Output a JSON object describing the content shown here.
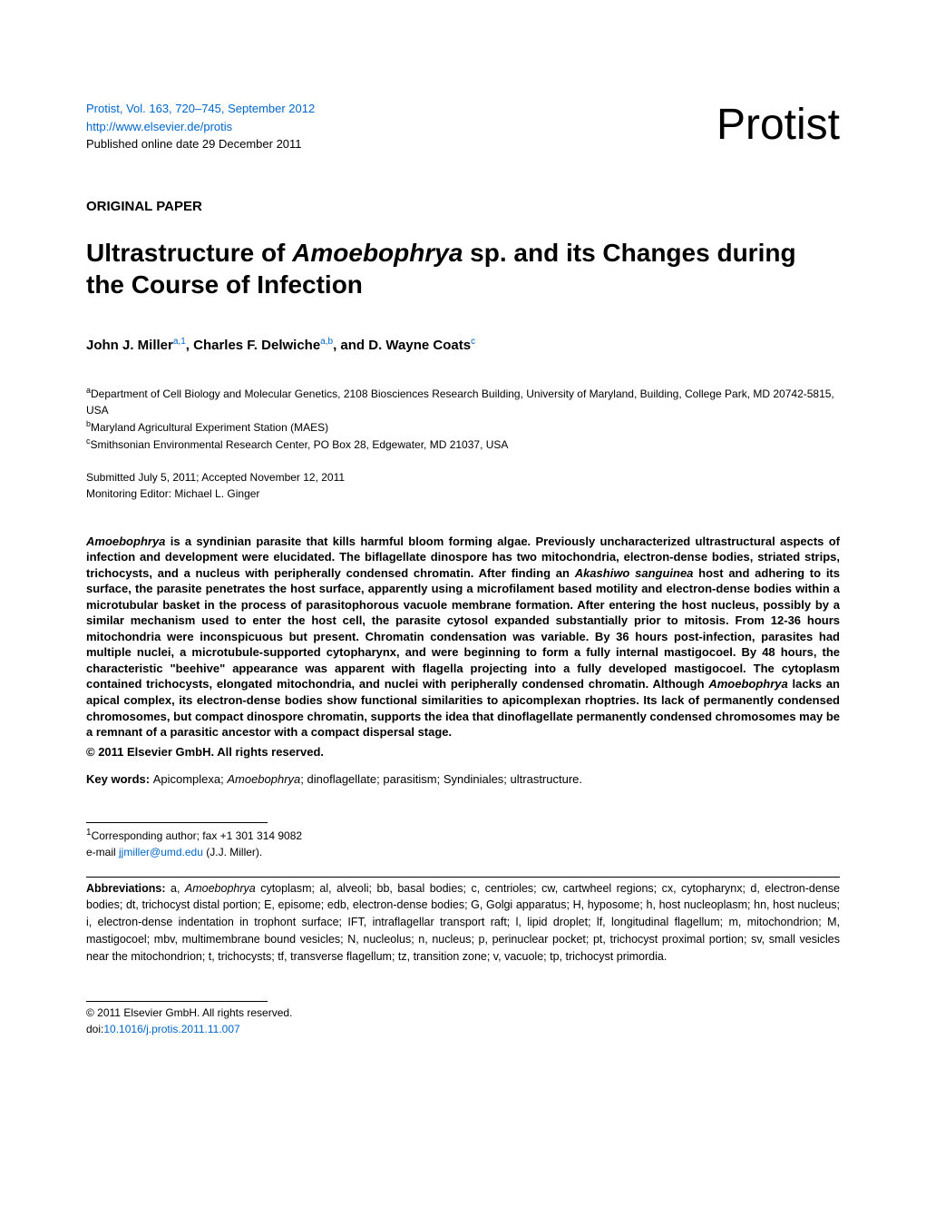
{
  "header": {
    "journal_info": "Protist, Vol. 163, 720–745, September 2012",
    "url": "http://www.elsevier.de/protis",
    "published": "Published online date 29 December 2011",
    "journal_logo": "Protist"
  },
  "paper_type": "ORIGINAL PAPER",
  "title_part1": "Ultrastructure of ",
  "title_italic": "Amoebophrya",
  "title_part2": " sp. and its Changes during the Course of Infection",
  "authors": {
    "a1_name": "John J. Miller",
    "a1_sup": "a,1",
    "sep1": ", ",
    "a2_name": "Charles F. Delwiche",
    "a2_sup": "a,b",
    "sep2": ", and ",
    "a3_name": "D. Wayne Coats",
    "a3_sup": "c"
  },
  "affiliations": {
    "a_sup": "a",
    "a_text": "Department of Cell Biology and Molecular Genetics, 2108 Biosciences Research Building, University of Maryland, Building, College Park, MD 20742-5815, USA",
    "b_sup": "b",
    "b_text": "Maryland Agricultural Experiment Station (MAES)",
    "c_sup": "c",
    "c_text": "Smithsonian Environmental Research Center, PO Box 28, Edgewater, MD 21037, USA"
  },
  "dates": {
    "submitted": "Submitted July 5, 2011; Accepted November 12, 2011",
    "editor": "Monitoring Editor: Michael L. Ginger"
  },
  "abstract": {
    "p1_italic1": "Amoebophrya",
    "p1_text1": " is a syndinian parasite that kills harmful bloom forming algae. Previously uncharacterized ultrastructural aspects of infection and development were elucidated. The biflagellate dinospore has two mitochondria, electron-dense bodies, striated strips, trichocysts, and a nucleus with peripherally condensed chromatin. After finding an ",
    "p1_italic2": "Akashiwo sanguinea",
    "p1_text2": " host and adhering to its surface, the parasite penetrates the host surface, apparently using a microfilament based motility and electron-dense bodies within a microtubular basket in the process of parasitophorous vacuole membrane formation. After entering the host nucleus, possibly by a similar mechanism used to enter the host cell, the parasite cytosol expanded substantially prior to mitosis. From 12-36 hours mitochondria were inconspicuous but present. Chromatin condensation was variable. By 36 hours post-infection, parasites had multiple nuclei, a microtubule-supported cytopharynx, and were beginning to form a fully internal mastigocoel. By 48 hours, the characteristic \"beehive\" appearance was apparent with flagella projecting into a fully developed mastigocoel. The cytoplasm contained trichocysts, elongated mitochondria, and nuclei with peripherally condensed chromatin. Although ",
    "p1_italic3": "Amoebophrya",
    "p1_text3": " lacks an apical complex, its electron-dense bodies show functional similarities to apicomplexan rhoptries. Its lack of permanently condensed chromosomes, but compact dinospore chromatin, supports the idea that dinoflagellate permanently condensed chromosomes may be a remnant of a parasitic ancestor with a compact dispersal stage."
  },
  "copyright": "© 2011 Elsevier GmbH. All rights reserved.",
  "keywords": {
    "label": "Key words: ",
    "text1": "Apicomplexa; ",
    "italic1": "Amoebophrya",
    "text2": "; dinoflagellate; parasitism; Syndiniales; ultrastructure."
  },
  "corresponding": {
    "sup": "1",
    "line1": "Corresponding author; fax +1 301 314 9082",
    "line2_prefix": "e-mail ",
    "email": "jjmiller@umd.edu",
    "line2_suffix": " (J.J. Miller)."
  },
  "abbreviations": {
    "label": "Abbreviations: ",
    "text1": "a, ",
    "italic1": "Amoebophrya",
    "text2": " cytoplasm; al, alveoli; bb, basal bodies; c, centrioles; cw, cartwheel regions; cx, cytopharynx; d, electron-dense bodies; dt, trichocyst distal portion; E, episome; edb, electron-dense bodies; G, Golgi apparatus; H, hyposome; h, host nucleoplasm; hn, host nucleus; i, electron-dense indentation in trophont surface; IFT, intraflagellar transport raft; l, lipid droplet; lf, longitudinal flagellum; m, mitochondrion; M, mastigocoel; mbv, multimembrane bound vesicles; N, nucleolus; n, nucleus; p, perinuclear pocket; pt, trichocyst proximal portion; sv, small vesicles near the mitochondrion; t, trichocysts; tf, transverse flagellum; tz, transition zone; v, vacuole; tp, trichocyst primordia."
  },
  "footer": {
    "copyright": "© 2011 Elsevier GmbH. All rights reserved.",
    "doi_prefix": "doi:",
    "doi_link": "10.1016/j.protis.2011.11.007"
  },
  "colors": {
    "link_color": "#0066cc",
    "text_color": "#000000",
    "background": "#ffffff"
  },
  "typography": {
    "body_font": "Arial, Helvetica, sans-serif",
    "logo_fontsize": 48,
    "title_fontsize": 28,
    "body_fontsize": 13,
    "small_fontsize": 12
  }
}
